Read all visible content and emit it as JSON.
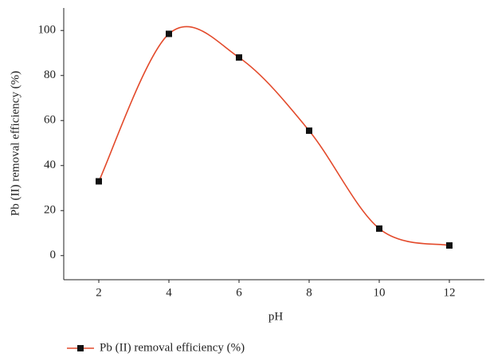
{
  "chart_data": {
    "type": "line",
    "x_label": "pH",
    "y_label": "Pb (II) removal efficiency (%)",
    "x": [
      2,
      4,
      6,
      8,
      10,
      12
    ],
    "series": [
      {
        "name": "Pb (II) removal efficiency (%)",
        "color": "#e34a2b",
        "marker_color": "#111111",
        "values": [
          33,
          98.5,
          88,
          55.5,
          12,
          4.5
        ]
      }
    ],
    "xlim": [
      1,
      13
    ],
    "xticks": [
      2,
      4,
      6,
      8,
      10,
      12
    ],
    "ylim": [
      -10,
      110
    ],
    "yticks": [
      0,
      20,
      40,
      60,
      80,
      100
    ],
    "smooth": true,
    "grid": false,
    "legend": "bottom-left"
  }
}
